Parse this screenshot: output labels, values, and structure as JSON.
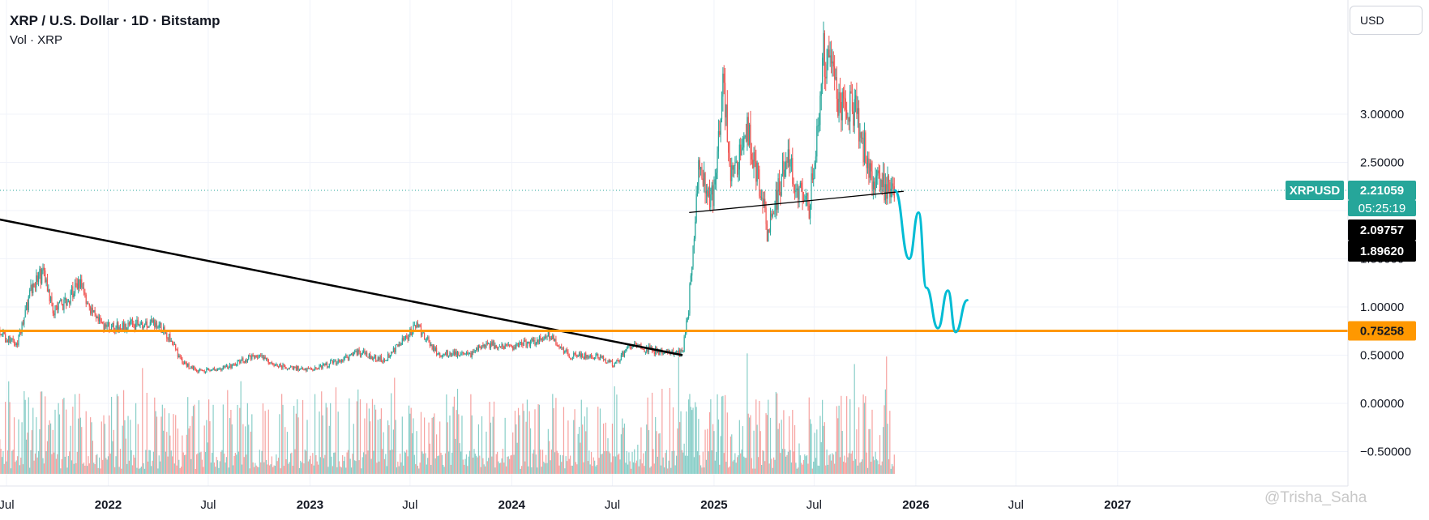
{
  "legend": {
    "symbol_line": "XRP / U.S. Dollar · 1D · Bitstamp",
    "volume_line": "Vol · XRP"
  },
  "currency_button": "USD",
  "price_scale": {
    "ticks": [
      "3.00000",
      "2.50000",
      "2.00000",
      "1.50000",
      "1.00000",
      "0.50000",
      "0.00000",
      "−0.50000"
    ]
  },
  "time_scale": {
    "ticks": [
      "Jul",
      "2022",
      "Jul",
      "2023",
      "Jul",
      "2024",
      "Jul",
      "2025",
      "Jul",
      "2026",
      "Jul",
      "2027"
    ]
  },
  "price_labels": {
    "symbol": "XRPUSD",
    "last_price": "2.21059",
    "countdown": "05:25:19",
    "high_mark": "2.09757",
    "low_mark": "1.89620",
    "horizontal_level": "0.75258"
  },
  "watermark": "@Trisha_Saha",
  "colors": {
    "up": "#26a69a",
    "down": "#ef5350",
    "support_line": "#ff9800",
    "projection": "#00bcd4",
    "trendline": "#000000",
    "price_label_bg": "#26a69a",
    "mark_bg": "#000000",
    "grid": "#f0f3fa"
  },
  "chart_data": {
    "type": "candlestick",
    "title": "XRP / U.S. Dollar · 1D · Bitstamp",
    "y_axis": {
      "min": -0.6,
      "max": 3.6,
      "unit": "USD"
    },
    "x_axis": {
      "start": "2021-05",
      "end": "2027-05"
    },
    "grid": true,
    "price_path": [
      {
        "date": "2021-05-20",
        "price": 0.95
      },
      {
        "date": "2021-06-20",
        "price": 0.72
      },
      {
        "date": "2021-07-20",
        "price": 0.6
      },
      {
        "date": "2021-08-15",
        "price": 1.2
      },
      {
        "date": "2021-09-05",
        "price": 1.35
      },
      {
        "date": "2021-09-25",
        "price": 0.95
      },
      {
        "date": "2021-10-20",
        "price": 1.08
      },
      {
        "date": "2021-11-10",
        "price": 1.25
      },
      {
        "date": "2021-12-10",
        "price": 0.85
      },
      {
        "date": "2022-01-05",
        "price": 0.78
      },
      {
        "date": "2022-02-15",
        "price": 0.82
      },
      {
        "date": "2022-03-28",
        "price": 0.85
      },
      {
        "date": "2022-04-20",
        "price": 0.7
      },
      {
        "date": "2022-05-15",
        "price": 0.42
      },
      {
        "date": "2022-06-18",
        "price": 0.33
      },
      {
        "date": "2022-08-01",
        "price": 0.37
      },
      {
        "date": "2022-09-25",
        "price": 0.5
      },
      {
        "date": "2022-11-10",
        "price": 0.38
      },
      {
        "date": "2022-12-31",
        "price": 0.35
      },
      {
        "date": "2023-02-01",
        "price": 0.4
      },
      {
        "date": "2023-03-30",
        "price": 0.53
      },
      {
        "date": "2023-05-15",
        "price": 0.45
      },
      {
        "date": "2023-07-13",
        "price": 0.8
      },
      {
        "date": "2023-08-20",
        "price": 0.52
      },
      {
        "date": "2023-10-15",
        "price": 0.5
      },
      {
        "date": "2023-11-15",
        "price": 0.62
      },
      {
        "date": "2024-01-05",
        "price": 0.58
      },
      {
        "date": "2024-03-11",
        "price": 0.7
      },
      {
        "date": "2024-04-13",
        "price": 0.5
      },
      {
        "date": "2024-06-10",
        "price": 0.48
      },
      {
        "date": "2024-07-05",
        "price": 0.4
      },
      {
        "date": "2024-08-01",
        "price": 0.6
      },
      {
        "date": "2024-10-01",
        "price": 0.53
      },
      {
        "date": "2024-11-05",
        "price": 0.52
      },
      {
        "date": "2024-11-16",
        "price": 1.0
      },
      {
        "date": "2024-12-03",
        "price": 2.4
      },
      {
        "date": "2024-12-30",
        "price": 2.1
      },
      {
        "date": "2025-01-16",
        "price": 3.3
      },
      {
        "date": "2025-02-03",
        "price": 2.3
      },
      {
        "date": "2025-03-02",
        "price": 2.9
      },
      {
        "date": "2025-04-07",
        "price": 1.8
      },
      {
        "date": "2025-05-12",
        "price": 2.5
      },
      {
        "date": "2025-06-22",
        "price": 2.0
      },
      {
        "date": "2025-07-18",
        "price": 3.6
      },
      {
        "date": "2025-08-15",
        "price": 3.15
      },
      {
        "date": "2025-09-12",
        "price": 3.05
      },
      {
        "date": "2025-10-10",
        "price": 2.4
      },
      {
        "date": "2025-11-04",
        "price": 2.25
      },
      {
        "date": "2025-11-24",
        "price": 2.21
      }
    ],
    "annotations": {
      "horizontal_support": 0.75258,
      "falling_trendline": [
        {
          "date": "2021-01-01",
          "price": 2.1
        },
        {
          "date": "2024-11-05",
          "price": 0.5
        }
      ],
      "neckline": [
        {
          "date": "2024-11-17",
          "price": 1.98
        },
        {
          "date": "2025-12-10",
          "price": 2.2
        }
      ],
      "projection_path": [
        {
          "date": "2025-11-24",
          "price": 2.21
        },
        {
          "date": "2025-12-20",
          "price": 1.5
        },
        {
          "date": "2026-01-06",
          "price": 1.98
        },
        {
          "date": "2026-01-20",
          "price": 1.2
        },
        {
          "date": "2026-02-10",
          "price": 0.78
        },
        {
          "date": "2026-02-28",
          "price": 1.17
        },
        {
          "date": "2026-03-14",
          "price": 0.74
        },
        {
          "date": "2026-04-04",
          "price": 1.07
        }
      ]
    }
  }
}
